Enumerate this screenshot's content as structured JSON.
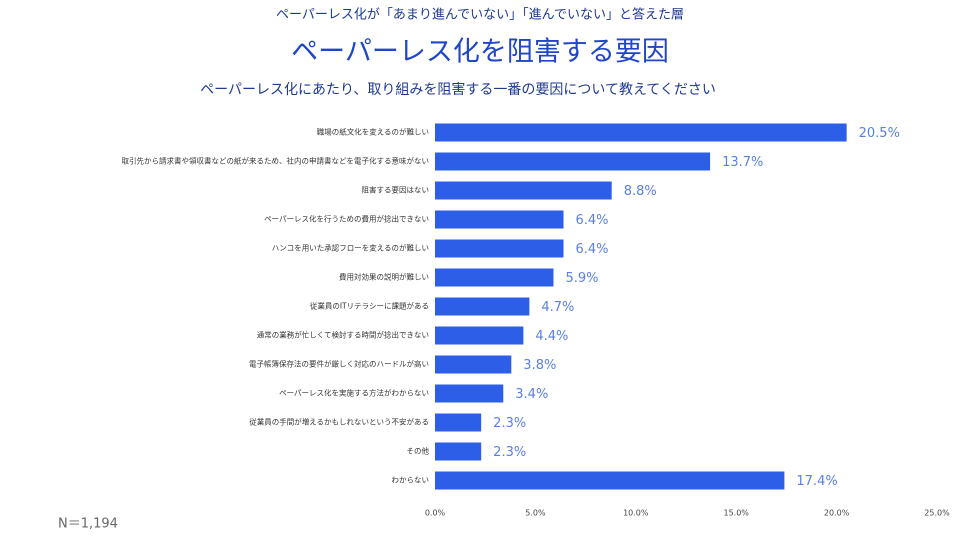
{
  "chart_data": {
    "type": "barh",
    "supertitle": "ペーパーレス化が「あまり進んでいない」「進んでいない」と答えた層",
    "title": "ペーパーレス化を阻害する要因",
    "subtitle": "ペーパーレス化にあたり、取り組みを阻害する一番の要因について教えてください",
    "note": "N＝1,194",
    "categories": [
      "職場の紙文化を変えるのが難しい",
      "取引先から請求書や領収書などの紙が来るため、社内の申請書などを電子化する意味がない",
      "阻害する要因はない",
      "ペーパーレス化を行うための費用が捻出できない",
      "ハンコを用いた承認フローを変えるのが難しい",
      "費用対効果の説明が難しい",
      "従業員のITリテラシーに課題がある",
      "通常の業務が忙しくて検討する時間が捻出できない",
      "電子帳簿保存法の要件が厳しく対応のハードルが高い",
      "ペーパーレス化を実施する方法がわからない",
      "従業員の手間が増えるかもしれないという不安がある",
      "その他",
      "わからない"
    ],
    "values": [
      20.5,
      13.7,
      8.8,
      6.4,
      6.4,
      5.9,
      4.7,
      4.4,
      3.8,
      3.4,
      2.3,
      2.3,
      17.4
    ],
    "value_labels": [
      "20.5%",
      "13.7%",
      "8.8%",
      "6.4%",
      "6.4%",
      "5.9%",
      "4.7%",
      "4.4%",
      "3.8%",
      "3.4%",
      "2.3%",
      "2.3%",
      "17.4%"
    ],
    "color": "#2d5ee8",
    "xlim": [
      0,
      25
    ],
    "xticks": [
      {
        "value": 0,
        "label": "0.0%"
      },
      {
        "value": 5,
        "label": "5.0%"
      },
      {
        "value": 10,
        "label": "10.0%"
      },
      {
        "value": 15,
        "label": "15.0%"
      },
      {
        "value": 20,
        "label": "20.0%"
      },
      {
        "value": 25,
        "label": "25.0%"
      }
    ],
    "grid": false
  }
}
